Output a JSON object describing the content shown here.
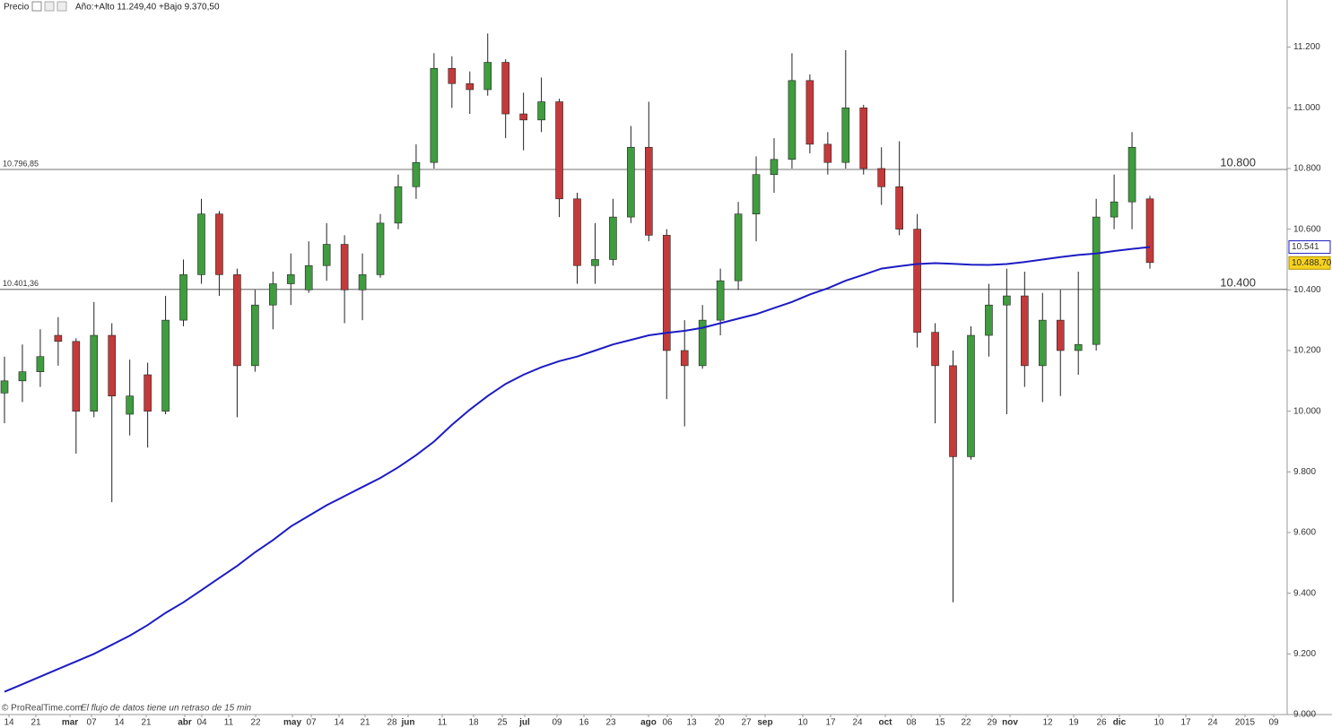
{
  "chart_data": {
    "type": "candlestick",
    "header_label": "Precio",
    "header_stats": "Año:+Alto 11.249,40 +Bajo 9.370,50",
    "footer_source": "© ProRealTime.com",
    "footer_note": "El flujo de datos tiene un retraso de 15 min",
    "up_color": "#3f9c3f",
    "down_color": "#c43a3a",
    "ylim": [
      9000,
      11320
    ],
    "yticks": [
      {
        "value": 9000,
        "label": "9.000"
      },
      {
        "value": 9200,
        "label": "9.200"
      },
      {
        "value": 9400,
        "label": "9.400"
      },
      {
        "value": 9600,
        "label": "9.600"
      },
      {
        "value": 9800,
        "label": "9.800"
      },
      {
        "value": 10000,
        "label": "10.000"
      },
      {
        "value": 10200,
        "label": "10.200"
      },
      {
        "value": 10400,
        "label": "10.400"
      },
      {
        "value": 10600,
        "label": "10.600"
      },
      {
        "value": 10800,
        "label": "10.800"
      },
      {
        "value": 11000,
        "label": "11.000"
      },
      {
        "value": 11200,
        "label": "11.200"
      }
    ],
    "xtick_labels": [
      "14",
      "21",
      "mar",
      "07",
      "14",
      "21",
      "abr",
      "04",
      "11",
      "22",
      "may",
      "07",
      "14",
      "21",
      "28",
      "jun",
      "11",
      "18",
      "25",
      "jul",
      "09",
      "16",
      "23",
      "ago",
      "06",
      "13",
      "20",
      "27",
      "sep",
      "10",
      "17",
      "24",
      "oct",
      "08",
      "15",
      "22",
      "29",
      "nov",
      "12",
      "19",
      "26",
      "dic",
      "10",
      "17",
      "24",
      "2015",
      "09"
    ],
    "open": [
      10060,
      10100,
      10130,
      10250,
      10230,
      10000,
      10250,
      9990,
      10120,
      10000,
      10300,
      10450,
      10650,
      10450,
      10150,
      10350,
      10420,
      10400,
      10480,
      10550,
      10400,
      10450,
      10620,
      10740,
      10820,
      11130,
      11080,
      11060,
      11150,
      10980,
      10960,
      11020,
      10700,
      10480,
      10500,
      10640,
      10870,
      10580,
      10200,
      10150,
      10300,
      10430,
      10650,
      10780,
      10830,
      11090,
      10880,
      10820,
      11000,
      10800,
      10740,
      10600,
      10260,
      10150,
      9850,
      10250,
      10350,
      10380,
      10150,
      10300,
      10200,
      10220,
      10640,
      10690,
      10700
    ],
    "high": [
      10180,
      10220,
      10270,
      10310,
      10240,
      10360,
      10290,
      10170,
      10160,
      10380,
      10500,
      10700,
      10660,
      10470,
      10400,
      10460,
      10520,
      10560,
      10620,
      10580,
      10520,
      10650,
      10780,
      10880,
      11180,
      11170,
      11120,
      11245,
      11160,
      11050,
      11100,
      11030,
      10720,
      10620,
      10700,
      10940,
      11020,
      10600,
      10300,
      10350,
      10470,
      10690,
      10840,
      10900,
      11180,
      11110,
      10920,
      11190,
      11010,
      10870,
      10890,
      10650,
      10290,
      10200,
      10280,
      10420,
      10470,
      10460,
      10390,
      10400,
      10460,
      10700,
      10780,
      10920,
      10710
    ],
    "low": [
      9960,
      10030,
      10080,
      10150,
      9860,
      9980,
      9700,
      9920,
      9880,
      9990,
      10280,
      10420,
      10380,
      9980,
      10130,
      10270,
      10350,
      10390,
      10430,
      10290,
      10300,
      10440,
      10600,
      10700,
      10800,
      11000,
      10980,
      11040,
      10900,
      10860,
      10920,
      10640,
      10420,
      10420,
      10480,
      10620,
      10560,
      10040,
      9950,
      10140,
      10250,
      10400,
      10560,
      10720,
      10800,
      10850,
      10780,
      10800,
      10780,
      10680,
      10580,
      10210,
      9960,
      9370,
      9840,
      10180,
      9990,
      10080,
      10030,
      10050,
      10120,
      10200,
      10600,
      10600,
      10470
    ],
    "close": [
      10100,
      10130,
      10180,
      10230,
      10000,
      10250,
      10050,
      10050,
      10000,
      10300,
      10450,
      10650,
      10450,
      10150,
      10350,
      10420,
      10450,
      10480,
      10550,
      10400,
      10450,
      10620,
      10740,
      10820,
      11130,
      11080,
      11060,
      11150,
      10980,
      10960,
      11020,
      10700,
      10480,
      10500,
      10640,
      10870,
      10580,
      10200,
      10150,
      10300,
      10430,
      10650,
      10780,
      10830,
      11090,
      10880,
      10820,
      11000,
      10800,
      10740,
      10600,
      10260,
      10150,
      9850,
      10250,
      10350,
      10380,
      10150,
      10300,
      10200,
      10220,
      10640,
      10690,
      10870,
      10490
    ],
    "ma": {
      "color": "#1c1cc4",
      "values": [
        9075,
        9100,
        9125,
        9150,
        9175,
        9200,
        9230,
        9260,
        9295,
        9335,
        9370,
        9410,
        9450,
        9490,
        9535,
        9575,
        9620,
        9655,
        9690,
        9720,
        9750,
        9780,
        9815,
        9855,
        9900,
        9955,
        10005,
        10050,
        10090,
        10120,
        10145,
        10165,
        10180,
        10200,
        10220,
        10235,
        10250,
        10258,
        10265,
        10275,
        10290,
        10305,
        10320,
        10340,
        10360,
        10385,
        10405,
        10430,
        10450,
        10470,
        10478,
        10485,
        10488,
        10486,
        10483,
        10482,
        10485,
        10492,
        10500,
        10508,
        10515,
        10520,
        10528,
        10535,
        10541
      ]
    },
    "levels": [
      {
        "value": 10796.85,
        "label": "10.796,85",
        "tag": "10.800"
      },
      {
        "value": 10401.36,
        "label": "10.401,36",
        "tag": "10.400"
      }
    ],
    "last_markers": [
      {
        "value": 10541,
        "label": "10.541",
        "color": "#ffffff",
        "border": "#1c1cc4"
      },
      {
        "value": 10488.7,
        "label": "10.488,70",
        "color": "#f7d21c",
        "border": "#b09000"
      }
    ]
  }
}
